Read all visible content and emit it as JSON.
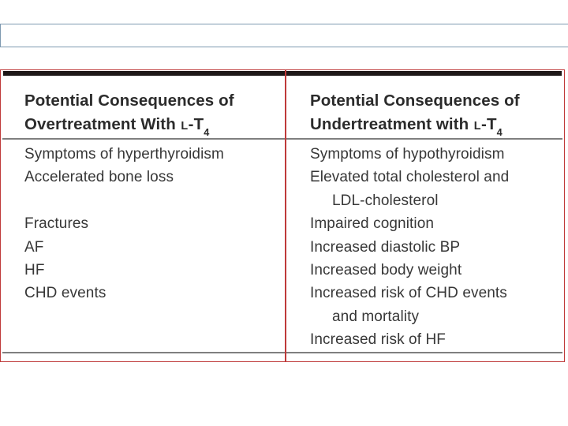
{
  "slide": {
    "title_placeholder_value": ""
  },
  "colors": {
    "accent_red": "#bf3a3a",
    "top_bar": "#1e1818",
    "rule_gray": "#7f7f7f",
    "placeholder_border": "#7e99b0",
    "header_text": "#2b2b2b",
    "body_text": "#373737"
  },
  "table": {
    "lt4": {
      "smallcap": "L",
      "main": "-T",
      "sub": "4"
    },
    "left": {
      "header_line1": "Potential Consequences of",
      "header_line2": "Overtreatment With",
      "lines": [
        "Symptoms of hyperthyroidism",
        "Accelerated bone loss",
        "",
        "Fractures",
        "AF",
        "HF",
        "CHD events"
      ]
    },
    "right": {
      "header_line1": "Potential Consequences of",
      "header_line2": "Undertreatment with",
      "lines": [
        "Symptoms of hypothyroidism",
        "Elevated total cholesterol and",
        "LDL-cholesterol",
        "Impaired cognition",
        "Increased diastolic BP",
        "Increased body weight",
        "Increased risk of CHD events",
        "and mortality",
        "Increased risk of HF"
      ]
    }
  }
}
